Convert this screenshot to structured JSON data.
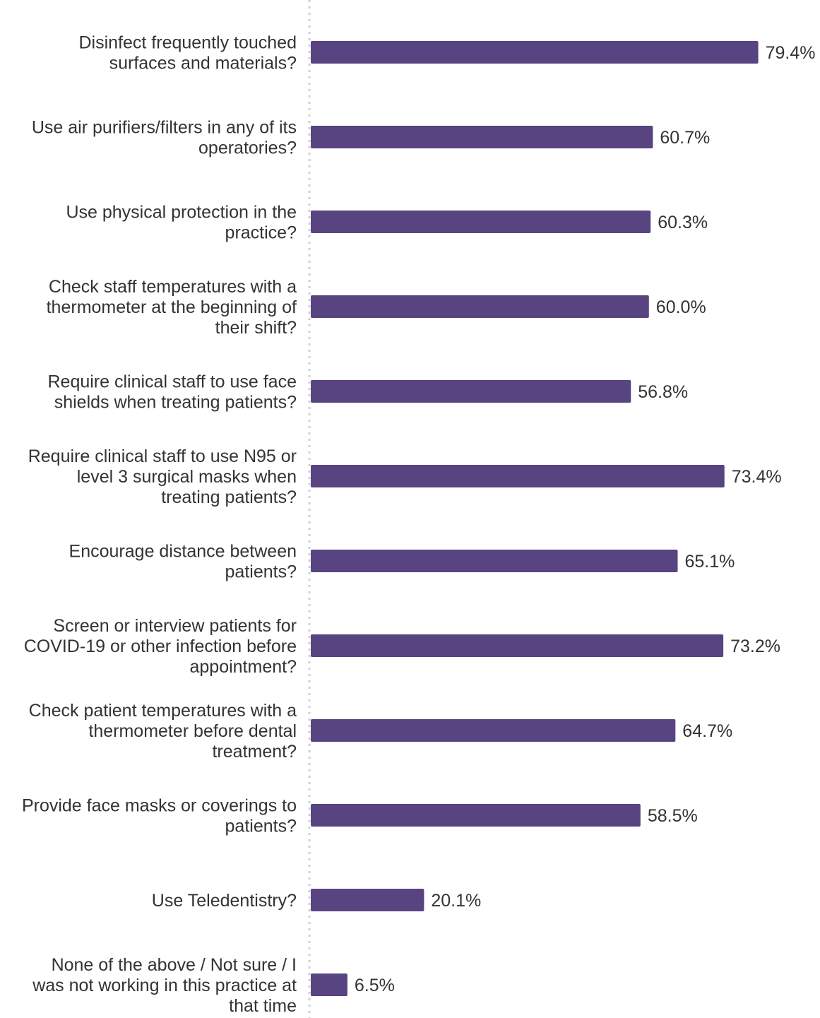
{
  "chart_data": {
    "type": "bar",
    "orientation": "horizontal",
    "bar_color": "#574481",
    "categories": [
      [
        "Disinfect frequently touched",
        "surfaces and materials?"
      ],
      [
        "Use air purifiers/filters in any of its",
        "operatories?"
      ],
      [
        "Use physical protection in the",
        "practice?"
      ],
      [
        "Check staff temperatures with a",
        "thermometer at the beginning of",
        "their shift?"
      ],
      [
        "Require clinical staff to use face",
        "shields when treating patients?"
      ],
      [
        "Require clinical staff to use N95 or",
        "level 3 surgical masks when",
        "treating patients?"
      ],
      [
        "Encourage distance between",
        "patients?"
      ],
      [
        "Screen or interview patients for",
        "COVID-19 or other infection before",
        "appointment?"
      ],
      [
        "Check patient temperatures with a",
        "thermometer before dental",
        "treatment?"
      ],
      [
        "Provide face masks or coverings to",
        "patients?"
      ],
      [
        "Use Teledentistry?"
      ],
      [
        "None of the above / Not sure / I",
        "was not working in this practice at",
        "that time"
      ]
    ],
    "values": [
      79.4,
      60.7,
      60.3,
      60.0,
      56.8,
      73.4,
      65.1,
      73.2,
      64.7,
      58.5,
      20.1,
      6.5
    ],
    "value_labels": [
      "79.4%",
      "60.7%",
      "60.3%",
      "60.0%",
      "56.8%",
      "73.4%",
      "65.1%",
      "73.2%",
      "64.7%",
      "58.5%",
      "20.1%",
      "6.5%"
    ],
    "xlim": [
      0,
      100
    ],
    "grid": false,
    "legend": "none"
  }
}
